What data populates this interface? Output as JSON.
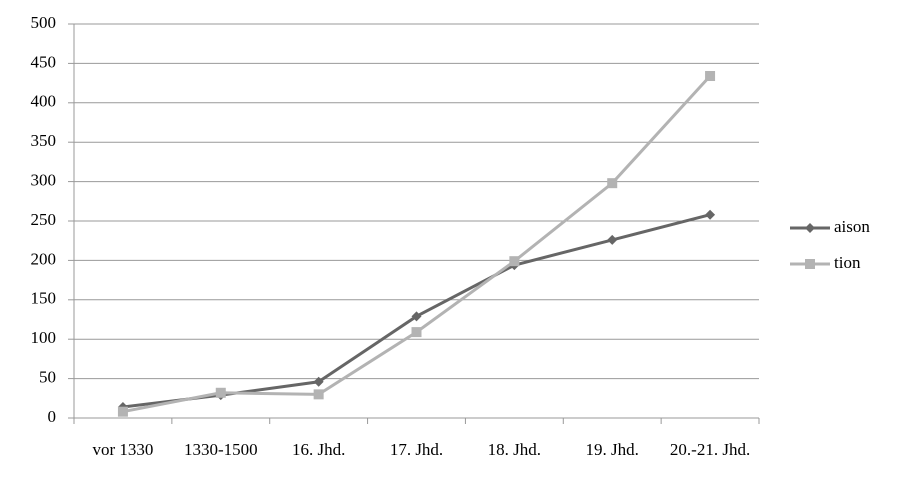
{
  "chart_data": {
    "type": "line",
    "categories": [
      "vor 1330",
      "1330-1500",
      "16. Jhd.",
      "17. Jhd.",
      "18. Jhd.",
      "19. Jhd.",
      "20.-21. Jhd."
    ],
    "series": [
      {
        "name": "aison",
        "color": "#666666",
        "marker": "diamond",
        "values": [
          14,
          29,
          46,
          129,
          194,
          226,
          258
        ]
      },
      {
        "name": "tion",
        "color": "#b3b3b3",
        "marker": "square",
        "values": [
          8,
          32,
          30,
          109,
          199,
          298,
          434
        ]
      }
    ],
    "ylim": [
      0,
      500
    ],
    "yticks": [
      0,
      50,
      100,
      150,
      200,
      250,
      300,
      350,
      400,
      450,
      500
    ],
    "grid": true,
    "legend": "right"
  }
}
